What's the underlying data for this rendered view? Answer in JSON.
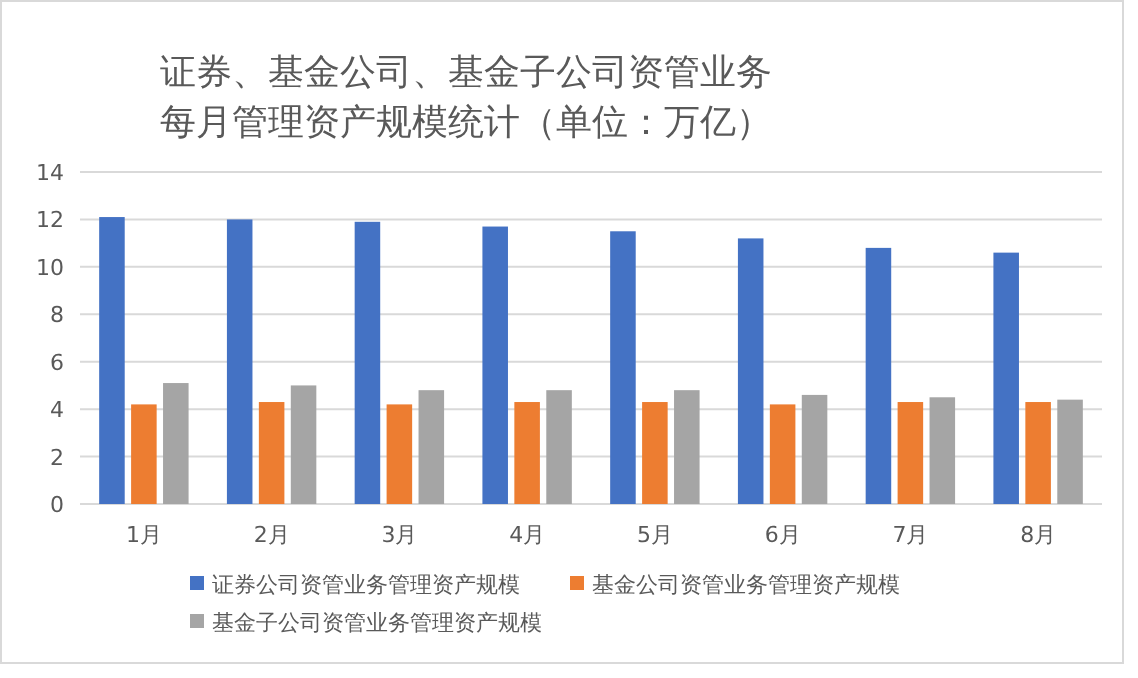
{
  "chart_data": {
    "type": "bar",
    "title": "证券、基金公司、基金子公司资管业务每月管理资产规模统计（单位：万亿）",
    "categories": [
      "1月",
      "2月",
      "3月",
      "4月",
      "5月",
      "6月",
      "7月",
      "8月"
    ],
    "series": [
      {
        "name": "证券公司资管业务管理资产规模",
        "color": "#4472c4",
        "values": [
          12.1,
          12.0,
          11.9,
          11.7,
          11.5,
          11.2,
          10.8,
          10.6
        ]
      },
      {
        "name": "基金公司资管业务管理资产规模",
        "color": "#ed7d31",
        "values": [
          4.2,
          4.3,
          4.2,
          4.3,
          4.3,
          4.2,
          4.3,
          4.3
        ]
      },
      {
        "name": "基金子公司资管业务管理资产规模",
        "color": "#a5a5a5",
        "values": [
          5.1,
          5.0,
          4.8,
          4.8,
          4.8,
          4.6,
          4.5,
          4.4
        ]
      }
    ],
    "ylim": [
      0,
      14
    ],
    "yticks": [
      0,
      2,
      4,
      6,
      8,
      10,
      12,
      14
    ],
    "grid": "y",
    "legend": "bottom"
  }
}
